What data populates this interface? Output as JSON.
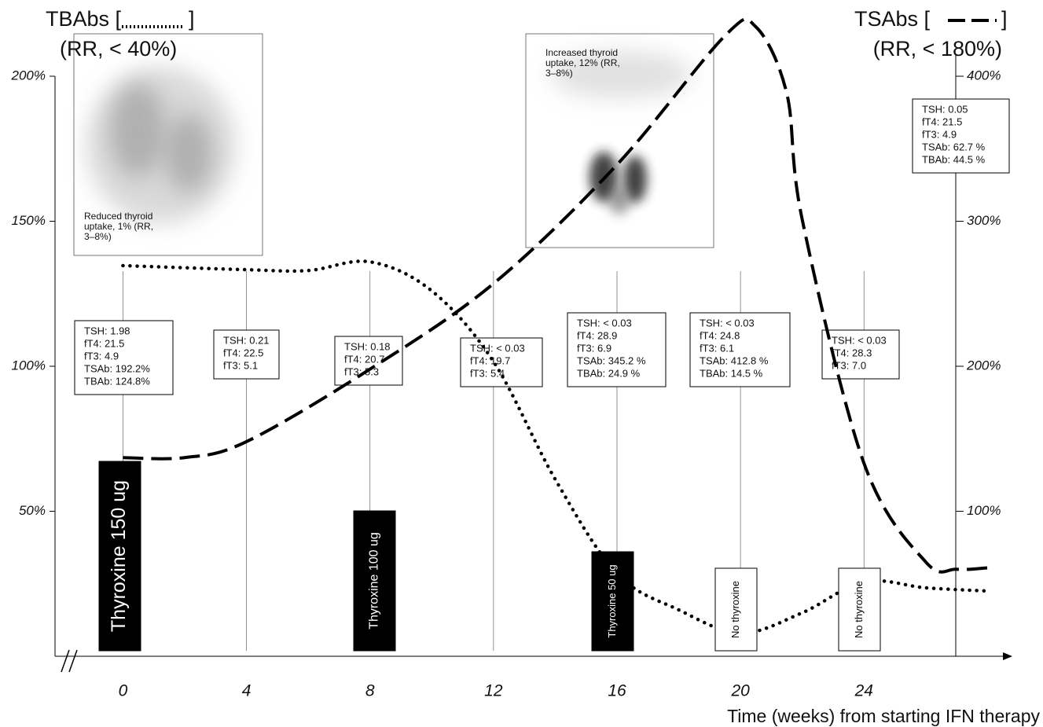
{
  "chart_data": {
    "type": "line",
    "left_title": {
      "open": "TBAbs [",
      "close": "]",
      "sub": "(RR, < 40%)"
    },
    "right_title": {
      "open": "TSAbs [",
      "close": "]",
      "sub": "(RR, < 180%)"
    },
    "x_label": "Time (weeks) from starting IFN therapy",
    "xlim": [
      -2.2,
      28.6
    ],
    "xticks": [
      0,
      4,
      8,
      12,
      16,
      20,
      24
    ],
    "ylim": [
      0,
      200
    ],
    "yticks": [
      {
        "value": 50,
        "label": "50%"
      },
      {
        "value": 100,
        "label": "100%"
      },
      {
        "value": 150,
        "label": "150%"
      },
      {
        "value": 200,
        "label": "200%"
      }
    ],
    "y2lim": [
      0,
      400
    ],
    "y2ticks": [
      {
        "value": 100,
        "label": "100%"
      },
      {
        "value": 200,
        "label": "200%"
      },
      {
        "value": 300,
        "label": "300%"
      },
      {
        "value": 400,
        "label": "400%"
      }
    ],
    "series": [
      {
        "name": "TBAbs",
        "color": "#000",
        "style": "dotted",
        "x": [
          0,
          4,
          6,
          8,
          10,
          12,
          14,
          16,
          18,
          20,
          22,
          24,
          26,
          28
        ],
        "values": [
          134.7,
          133.3,
          133,
          136,
          126,
          101.6,
          61,
          28.5,
          16,
          8,
          15,
          25.7,
          23.6,
          22.5
        ]
      },
      {
        "name": "TSAbs",
        "color": "#000",
        "style": "dashed",
        "axis": "y2",
        "x": [
          0,
          2,
          4,
          8,
          12,
          16,
          19.5,
          20.5,
          21.5,
          22,
          24,
          26,
          27,
          28
        ],
        "values": [
          137,
          137,
          148,
          198,
          257,
          339,
          428,
          434,
          388,
          301,
          133,
          65,
          60,
          61
        ]
      }
    ],
    "lab_boxes": [
      [
        "TSH: 1.98",
        "fT4:  21.5",
        "fT3:  4.9",
        "TSAb: 192.2%",
        "TBAb: 124.8%"
      ],
      [
        "TSH: 0.21",
        "fT4:  22.5",
        "fT3:  5.1"
      ],
      [
        "TSH: 0.18",
        "fT4:  20.7",
        "fT3:  5.3"
      ],
      [
        "TSH: < 0.03",
        "fT4:  19.7",
        "fT3:  5.4"
      ],
      [
        "TSH: < 0.03",
        "fT4:  28.9",
        "fT3:  6.9",
        "TSAb: 345.2 %",
        "TBAb: 24.9 %"
      ],
      [
        "TSH: < 0.03",
        "fT4:  24.8",
        "fT3:  6.1",
        "TSAb: 412.8 %",
        "TBAb: 14.5 %"
      ],
      [
        "TSH: < 0.03",
        "fT4:  28.3",
        "fT3:  7.0"
      ],
      [
        "TSH: 0.05",
        "fT4:  21.5",
        "fT3:  4.9",
        "TSAb: 62.7 %",
        "TBAb: 44.5 %"
      ]
    ],
    "doses": [
      "Thyroxine 150 ug",
      "Thyroxine 100 ug",
      "Thyroxine 50 ug",
      "No thyroxine",
      "No thyroxine"
    ],
    "scans": [
      [
        "Reduced thyroid",
        "uptake, 1% (RR,",
        "3–8%)"
      ],
      [
        "Increased thyroid",
        "uptake, 12% (RR,",
        "3–8%)"
      ]
    ]
  }
}
